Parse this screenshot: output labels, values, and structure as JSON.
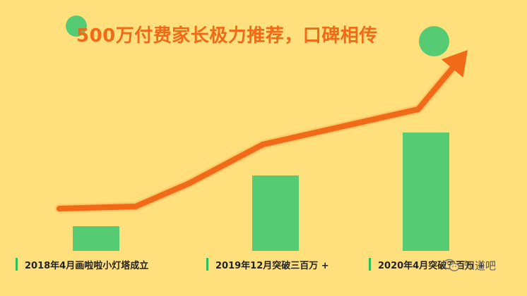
{
  "title": "500万付费家长极力推荐，口碑相传",
  "colors": {
    "background": "#FFE07D",
    "bar": "#55CC73",
    "arrow": "#F06A18",
    "tick": "#2DBE5A",
    "title": "#F06A18"
  },
  "chart_data": {
    "type": "bar",
    "title": "500万付费家长极力推荐，口碑相传",
    "categories": [
      "2018年4月画啦啦小灯塔成立",
      "2019年12月突破三百万 +",
      "2020年4月突破五百万 +"
    ],
    "values": [
      35,
      107,
      168
    ],
    "ylim": [
      0,
      220
    ],
    "trend_line": {
      "style": "arrow",
      "values": [
        60,
        63,
        96,
        151,
        176,
        201,
        285
      ]
    },
    "grid": false,
    "legend": "none"
  },
  "watermark": {
    "text": "知道吧",
    "icon": "wechat-icon"
  }
}
